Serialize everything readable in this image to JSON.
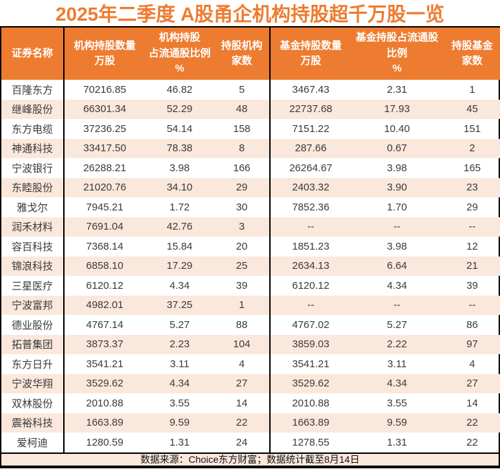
{
  "title": "2025年二季度 A股甬企机构持股超千万股一览",
  "colors": {
    "accent_orange": "#ED7C30",
    "row_alternate": "#FBE8DC",
    "header_text": "#FFFFFF",
    "body_text": "#3A3A3A",
    "border": "#000000"
  },
  "table": {
    "columns": [
      {
        "label": "证券名称"
      },
      {
        "label": "机构持股数量\n万股"
      },
      {
        "label": "机构持股\n占流通股比例\n%"
      },
      {
        "label": "持股机构\n家数"
      },
      {
        "label": "基金持股数量\n万股"
      },
      {
        "label": "基金持股占流通股\n比例\n%"
      },
      {
        "label": "持股基金\n家数"
      }
    ],
    "rows": [
      {
        "name": "百隆东方",
        "inst_qty": "70216.85",
        "inst_pct": "46.82",
        "inst_cnt": "5",
        "fund_qty": "3467.43",
        "fund_pct": "2.31",
        "fund_cnt": "1"
      },
      {
        "name": "继峰股份",
        "inst_qty": "66301.34",
        "inst_pct": "52.29",
        "inst_cnt": "48",
        "fund_qty": "22737.68",
        "fund_pct": "17.93",
        "fund_cnt": "45"
      },
      {
        "name": "东方电缆",
        "inst_qty": "37236.25",
        "inst_pct": "54.14",
        "inst_cnt": "158",
        "fund_qty": "7151.22",
        "fund_pct": "10.40",
        "fund_cnt": "151"
      },
      {
        "name": "神通科技",
        "inst_qty": "33417.50",
        "inst_pct": "78.38",
        "inst_cnt": "8",
        "fund_qty": "287.66",
        "fund_pct": "0.67",
        "fund_cnt": "2"
      },
      {
        "name": "宁波银行",
        "inst_qty": "26288.21",
        "inst_pct": "3.98",
        "inst_cnt": "166",
        "fund_qty": "26264.67",
        "fund_pct": "3.98",
        "fund_cnt": "165"
      },
      {
        "name": "东睦股份",
        "inst_qty": "21020.76",
        "inst_pct": "34.10",
        "inst_cnt": "29",
        "fund_qty": "2403.32",
        "fund_pct": "3.90",
        "fund_cnt": "23"
      },
      {
        "name": "雅戈尔",
        "inst_qty": "7945.21",
        "inst_pct": "1.72",
        "inst_cnt": "30",
        "fund_qty": "7852.36",
        "fund_pct": "1.70",
        "fund_cnt": "29"
      },
      {
        "name": "润禾材料",
        "inst_qty": "7691.04",
        "inst_pct": "42.76",
        "inst_cnt": "3",
        "fund_qty": "--",
        "fund_pct": "--",
        "fund_cnt": "--"
      },
      {
        "name": "容百科技",
        "inst_qty": "7368.14",
        "inst_pct": "15.84",
        "inst_cnt": "20",
        "fund_qty": "1851.23",
        "fund_pct": "3.98",
        "fund_cnt": "12"
      },
      {
        "name": "锦浪科技",
        "inst_qty": "6858.10",
        "inst_pct": "17.29",
        "inst_cnt": "25",
        "fund_qty": "2634.13",
        "fund_pct": "6.64",
        "fund_cnt": "21"
      },
      {
        "name": "三星医疗",
        "inst_qty": "6120.12",
        "inst_pct": "4.34",
        "inst_cnt": "39",
        "fund_qty": "6120.12",
        "fund_pct": "4.34",
        "fund_cnt": "39"
      },
      {
        "name": "宁波富邦",
        "inst_qty": "4982.01",
        "inst_pct": "37.25",
        "inst_cnt": "1",
        "fund_qty": "--",
        "fund_pct": "--",
        "fund_cnt": "--"
      },
      {
        "name": "德业股份",
        "inst_qty": "4767.14",
        "inst_pct": "5.27",
        "inst_cnt": "88",
        "fund_qty": "4767.02",
        "fund_pct": "5.27",
        "fund_cnt": "86"
      },
      {
        "name": "拓普集团",
        "inst_qty": "3873.37",
        "inst_pct": "2.23",
        "inst_cnt": "104",
        "fund_qty": "3859.03",
        "fund_pct": "2.22",
        "fund_cnt": "97"
      },
      {
        "name": "东方日升",
        "inst_qty": "3541.21",
        "inst_pct": "3.11",
        "inst_cnt": "4",
        "fund_qty": "3541.21",
        "fund_pct": "3.11",
        "fund_cnt": "4"
      },
      {
        "name": "宁波华翔",
        "inst_qty": "3529.62",
        "inst_pct": "4.34",
        "inst_cnt": "27",
        "fund_qty": "3529.62",
        "fund_pct": "4.34",
        "fund_cnt": "27"
      },
      {
        "name": "双林股份",
        "inst_qty": "2010.88",
        "inst_pct": "3.55",
        "inst_cnt": "14",
        "fund_qty": "2010.88",
        "fund_pct": "3.55",
        "fund_cnt": "14"
      },
      {
        "name": "震裕科技",
        "inst_qty": "1663.89",
        "inst_pct": "9.59",
        "inst_cnt": "22",
        "fund_qty": "1663.89",
        "fund_pct": "9.59",
        "fund_cnt": "22"
      },
      {
        "name": "爱柯迪",
        "inst_qty": "1280.59",
        "inst_pct": "1.31",
        "inst_cnt": "24",
        "fund_qty": "1278.55",
        "fund_pct": "1.31",
        "fund_cnt": "22"
      }
    ]
  },
  "footer": {
    "text": "数据来源：Choice东方财富；数据统计截至8月14日"
  },
  "chart_data": {
    "type": "table",
    "title": "2025年二季度 A股甬企机构持股超千万股一览",
    "columns": [
      "证券名称",
      "机构持股数量万股",
      "机构持股占流通股比例%",
      "持股机构家数",
      "基金持股数量万股",
      "基金持股占流通股比例%",
      "持股基金家数"
    ],
    "rows": [
      [
        "百隆东方",
        70216.85,
        46.82,
        5,
        3467.43,
        2.31,
        1
      ],
      [
        "继峰股份",
        66301.34,
        52.29,
        48,
        22737.68,
        17.93,
        45
      ],
      [
        "东方电缆",
        37236.25,
        54.14,
        158,
        7151.22,
        10.4,
        151
      ],
      [
        "神通科技",
        33417.5,
        78.38,
        8,
        287.66,
        0.67,
        2
      ],
      [
        "宁波银行",
        26288.21,
        3.98,
        166,
        26264.67,
        3.98,
        165
      ],
      [
        "东睦股份",
        21020.76,
        34.1,
        29,
        2403.32,
        3.9,
        23
      ],
      [
        "雅戈尔",
        7945.21,
        1.72,
        30,
        7852.36,
        1.7,
        29
      ],
      [
        "润禾材料",
        7691.04,
        42.76,
        3,
        "--",
        "--",
        "--"
      ],
      [
        "容百科技",
        7368.14,
        15.84,
        20,
        1851.23,
        3.98,
        12
      ],
      [
        "锦浪科技",
        6858.1,
        17.29,
        25,
        2634.13,
        6.64,
        21
      ],
      [
        "三星医疗",
        6120.12,
        4.34,
        39,
        6120.12,
        4.34,
        39
      ],
      [
        "宁波富邦",
        4982.01,
        37.25,
        1,
        "--",
        "--",
        "--"
      ],
      [
        "德业股份",
        4767.14,
        5.27,
        88,
        4767.02,
        5.27,
        86
      ],
      [
        "拓普集团",
        3873.37,
        2.23,
        104,
        3859.03,
        2.22,
        97
      ],
      [
        "东方日升",
        3541.21,
        3.11,
        4,
        3541.21,
        3.11,
        4
      ],
      [
        "宁波华翔",
        3529.62,
        4.34,
        27,
        3529.62,
        4.34,
        27
      ],
      [
        "双林股份",
        2010.88,
        3.55,
        14,
        2010.88,
        3.55,
        14
      ],
      [
        "震裕科技",
        1663.89,
        9.59,
        22,
        1663.89,
        9.59,
        22
      ],
      [
        "爱柯迪",
        1280.59,
        1.31,
        24,
        1278.55,
        1.31,
        22
      ]
    ],
    "missing_value_marker": "--",
    "source_note": "数据来源：Choice东方财富；数据统计截至8月14日"
  }
}
